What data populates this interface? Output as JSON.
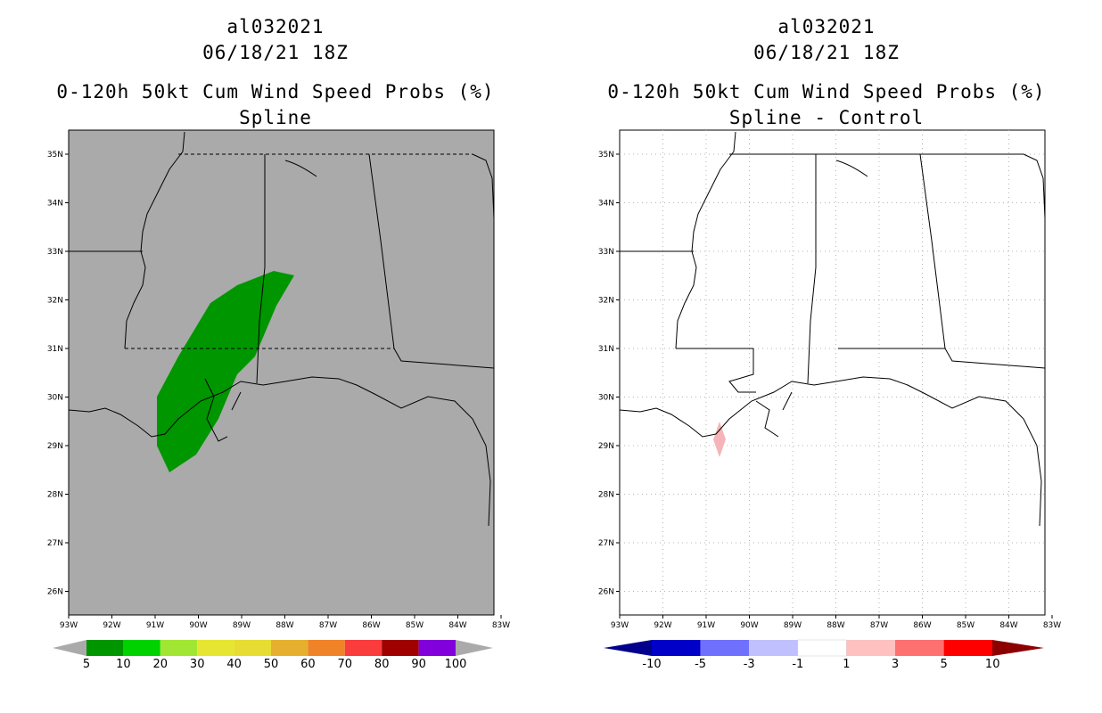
{
  "left_panel": {
    "title_storm": "al032021",
    "title_date": "06/18/21 18Z",
    "title_product": "0-120h 50kt Cum Wind Speed Probs (%)",
    "title_sub": "Spline",
    "lat_labels": [
      "35N",
      "34N",
      "33N",
      "32N",
      "31N",
      "30N",
      "29N",
      "28N",
      "27N",
      "26N"
    ],
    "lon_labels": [
      "93W",
      "92W",
      "91W",
      "90W",
      "89W",
      "88W",
      "87W",
      "86W",
      "85W",
      "84W",
      "83W"
    ],
    "colorbar": {
      "labels": [
        "5",
        "10",
        "20",
        "30",
        "40",
        "50",
        "60",
        "70",
        "80",
        "90",
        "100"
      ],
      "colors": [
        "#009600",
        "#00d200",
        "#a0e632",
        "#e6e632",
        "#e6dc32",
        "#e6af2d",
        "#f08228",
        "#fa3c3c",
        "#a00000",
        "#8200dc"
      ]
    }
  },
  "right_panel": {
    "title_storm": "al032021",
    "title_date": "06/18/21 18Z",
    "title_product": "0-120h 50kt Cum Wind Speed Probs (%)",
    "title_sub": "Spline - Control",
    "lat_labels": [
      "35N",
      "34N",
      "33N",
      "32N",
      "31N",
      "30N",
      "29N",
      "28N",
      "27N",
      "26N"
    ],
    "lon_labels": [
      "93W",
      "92W",
      "91W",
      "90W",
      "89W",
      "88W",
      "87W",
      "86W",
      "85W",
      "84W",
      "83W"
    ],
    "colorbar": {
      "labels": [
        "-10",
        "-5",
        "-3",
        "-1",
        "1",
        "3",
        "5",
        "10"
      ],
      "colors": [
        "#0000c8",
        "#7070ff",
        "#c0c0ff",
        "#ffffff",
        "#ffc0c0",
        "#ff7070",
        "#ff0000"
      ],
      "end_low": "#00008c",
      "end_high": "#8c0000"
    }
  },
  "colors": {
    "land_fill": "#aaaaaa",
    "probability_green": "#009600",
    "difference_pink": "#f5b4b9",
    "coastline": "#000000"
  }
}
